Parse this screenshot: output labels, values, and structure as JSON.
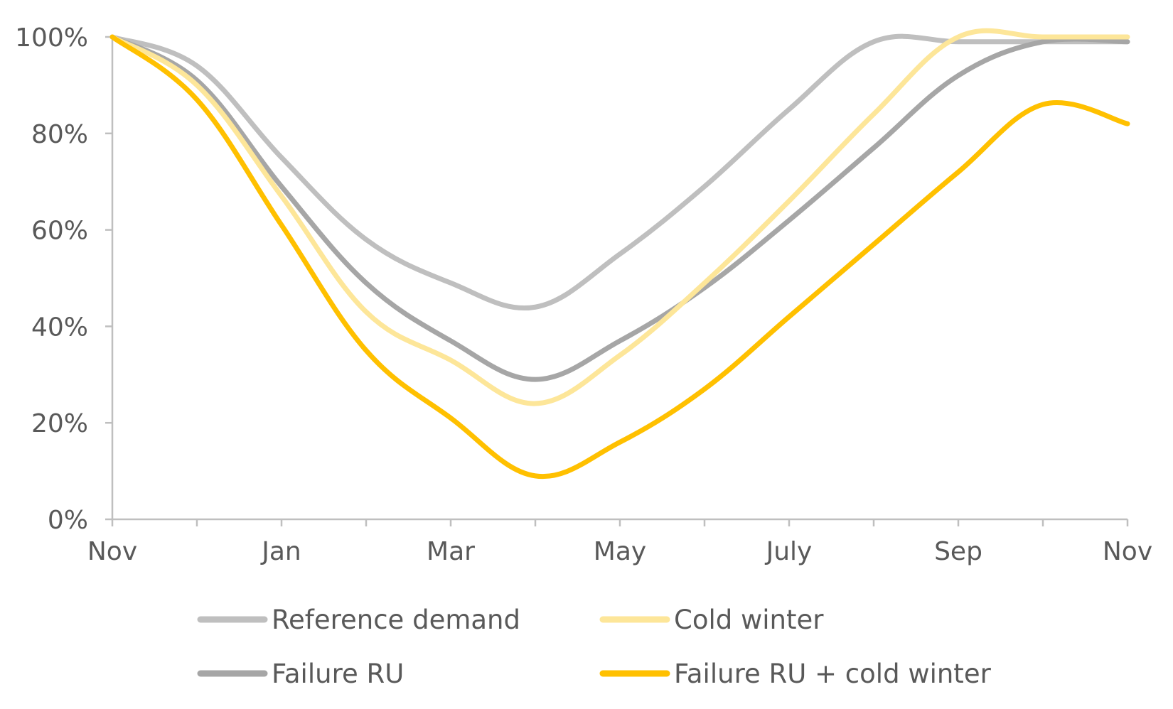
{
  "chart_data": {
    "type": "line",
    "title": "",
    "xlabel": "",
    "ylabel": "",
    "x_ticks": [
      "Nov",
      "",
      "Jan",
      "",
      "Mar",
      "",
      "May",
      "",
      "July",
      "",
      "Sep",
      "",
      "Nov"
    ],
    "y_ticks": [
      "0%",
      "20%",
      "40%",
      "60%",
      "80%",
      "100%"
    ],
    "ylim": [
      0,
      100
    ],
    "grid": false,
    "legend_placement": "bottom",
    "series": [
      {
        "name": "Reference demand",
        "color": "#bfbfbf",
        "values": [
          100,
          94,
          75,
          58,
          49,
          44,
          55,
          69,
          85,
          99,
          99,
          99,
          99
        ]
      },
      {
        "name": "Cold winter",
        "color": "#fde699",
        "values": [
          100,
          90,
          67,
          43,
          33,
          24,
          34,
          49,
          66,
          84,
          100,
          100,
          100
        ]
      },
      {
        "name": "Failure RU",
        "color": "#a6a6a6",
        "values": [
          100,
          91,
          69,
          49,
          37,
          29,
          37,
          48,
          62,
          77,
          92,
          99,
          99
        ]
      },
      {
        "name": "Failure RU + cold winter",
        "color": "#ffc000",
        "values": [
          100,
          87,
          61,
          35,
          21,
          9,
          16,
          27,
          42,
          57,
          72,
          86,
          82
        ]
      }
    ]
  }
}
